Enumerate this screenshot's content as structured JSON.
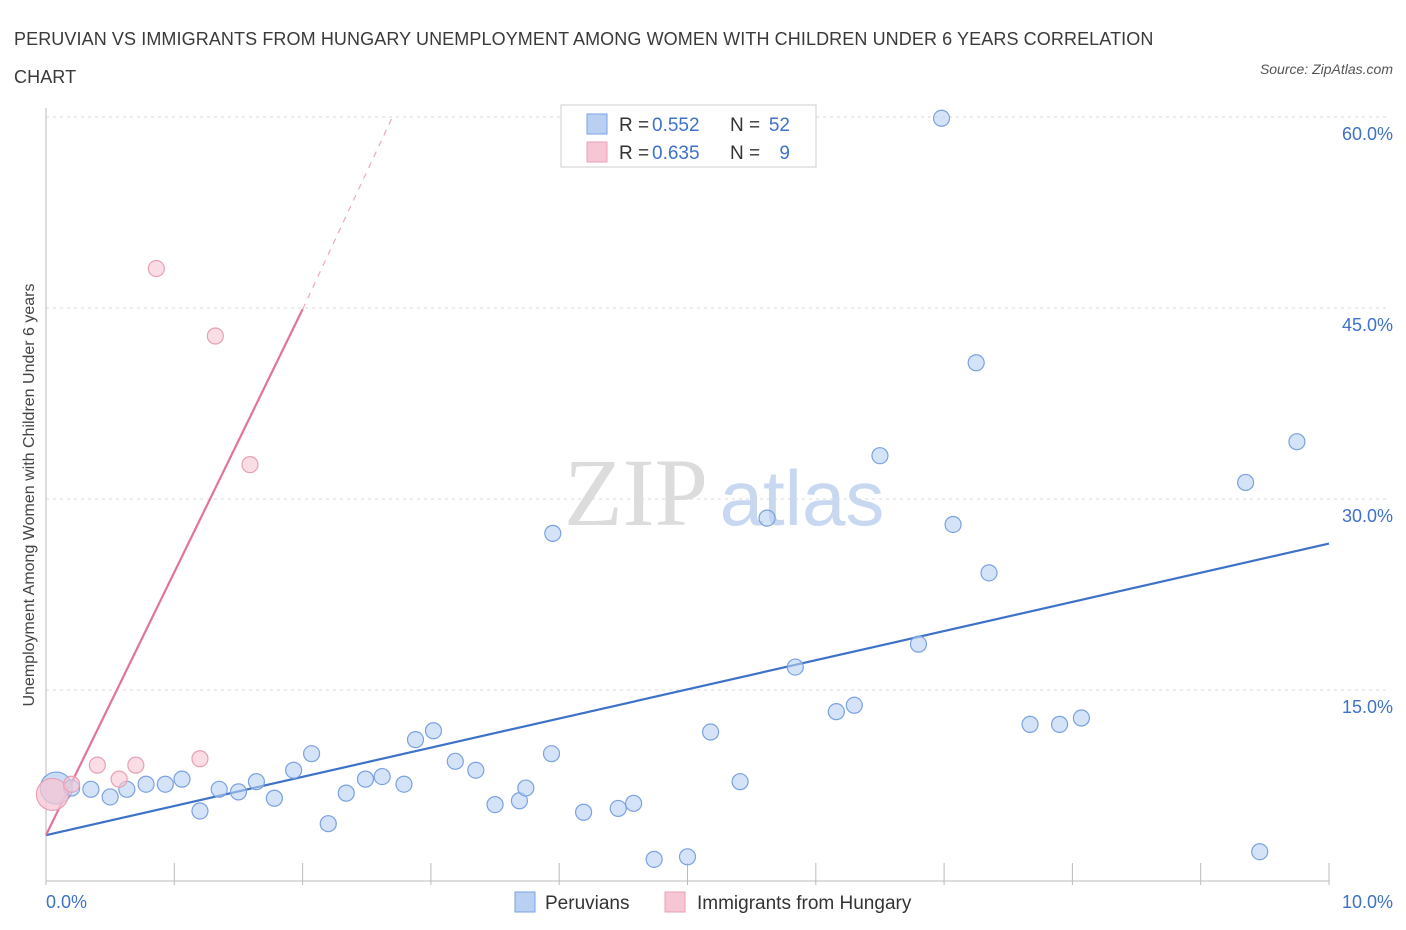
{
  "title": "PERUVIAN VS IMMIGRANTS FROM HUNGARY UNEMPLOYMENT AMONG WOMEN WITH CHILDREN UNDER 6 YEARS CORRELATION CHART",
  "source": "Source: ZipAtlas.com",
  "watermark": {
    "zip": "ZIP",
    "atlas": "atlas"
  },
  "colors": {
    "blue": "#3d72c8",
    "blue_fill": "#b9d0f3",
    "pink": "#e2739a",
    "pink_fill": "#f7c6d4",
    "grid": "#d9d9d9"
  },
  "legend": {
    "series": [
      {
        "r_label": "R =",
        "r_value": "0.552",
        "n_label": "N =",
        "n_value": "52"
      },
      {
        "r_label": "R =",
        "r_value": "0.635",
        "n_label": "N =",
        "n_value": "9"
      }
    ]
  },
  "bottom_legend": [
    "Peruvians",
    "Immigrants from Hungary"
  ],
  "chart_data": {
    "type": "scatter",
    "title": "PERUVIAN VS IMMIGRANTS FROM HUNGARY UNEMPLOYMENT AMONG WOMEN WITH CHILDREN UNDER 6 YEARS CORRELATION CHART",
    "xlabel": "",
    "ylabel": "Unemployment Among Women with Children Under 6 years",
    "xlim": [
      0,
      10
    ],
    "ylim": [
      0,
      60
    ],
    "x_tick_labels": [
      "0.0%",
      "10.0%"
    ],
    "y_ticks": [
      15,
      30,
      45,
      60
    ],
    "y_tick_labels": [
      "15.0%",
      "30.0%",
      "45.0%",
      "60.0%"
    ],
    "grid": true,
    "series": [
      {
        "name": "Peruvians",
        "r": 0.552,
        "n": 52,
        "trendline": {
          "x": [
            0,
            10
          ],
          "y": [
            3.6,
            26.5
          ]
        },
        "points": [
          {
            "x": 0.08,
            "y": 7.3,
            "big": true
          },
          {
            "x": 0.2,
            "y": 7.3
          },
          {
            "x": 0.35,
            "y": 7.2
          },
          {
            "x": 0.5,
            "y": 6.6
          },
          {
            "x": 0.63,
            "y": 7.2
          },
          {
            "x": 0.78,
            "y": 7.6
          },
          {
            "x": 0.93,
            "y": 7.6
          },
          {
            "x": 1.06,
            "y": 8.0
          },
          {
            "x": 1.2,
            "y": 5.5
          },
          {
            "x": 1.35,
            "y": 7.2
          },
          {
            "x": 1.5,
            "y": 7.0
          },
          {
            "x": 1.64,
            "y": 7.8
          },
          {
            "x": 1.78,
            "y": 6.5
          },
          {
            "x": 1.93,
            "y": 8.7
          },
          {
            "x": 2.07,
            "y": 10.0
          },
          {
            "x": 2.2,
            "y": 4.5
          },
          {
            "x": 2.34,
            "y": 6.9
          },
          {
            "x": 2.49,
            "y": 8.0
          },
          {
            "x": 2.62,
            "y": 8.2
          },
          {
            "x": 2.79,
            "y": 7.6
          },
          {
            "x": 2.88,
            "y": 11.1
          },
          {
            "x": 3.02,
            "y": 11.8
          },
          {
            "x": 3.19,
            "y": 9.4
          },
          {
            "x": 3.35,
            "y": 8.7
          },
          {
            "x": 3.5,
            "y": 6.0
          },
          {
            "x": 3.69,
            "y": 6.3
          },
          {
            "x": 3.74,
            "y": 7.3
          },
          {
            "x": 3.94,
            "y": 10.0
          },
          {
            "x": 3.95,
            "y": 27.3
          },
          {
            "x": 4.19,
            "y": 5.4
          },
          {
            "x": 4.46,
            "y": 5.7
          },
          {
            "x": 4.58,
            "y": 6.1
          },
          {
            "x": 4.74,
            "y": 1.7
          },
          {
            "x": 5.0,
            "y": 1.9
          },
          {
            "x": 5.18,
            "y": 11.7
          },
          {
            "x": 5.41,
            "y": 7.8
          },
          {
            "x": 5.62,
            "y": 28.5
          },
          {
            "x": 5.84,
            "y": 16.8
          },
          {
            "x": 6.16,
            "y": 13.3
          },
          {
            "x": 6.3,
            "y": 13.8
          },
          {
            "x": 6.5,
            "y": 33.4
          },
          {
            "x": 6.8,
            "y": 18.6
          },
          {
            "x": 6.98,
            "y": 59.9
          },
          {
            "x": 7.07,
            "y": 28.0
          },
          {
            "x": 7.25,
            "y": 40.7
          },
          {
            "x": 7.35,
            "y": 24.2
          },
          {
            "x": 7.67,
            "y": 12.3
          },
          {
            "x": 7.9,
            "y": 12.3
          },
          {
            "x": 8.07,
            "y": 12.8
          },
          {
            "x": 9.35,
            "y": 31.3
          },
          {
            "x": 9.46,
            "y": 2.3
          },
          {
            "x": 9.75,
            "y": 34.5
          }
        ]
      },
      {
        "name": "Immigrants from Hungary",
        "r": 0.635,
        "n": 9,
        "trendline": {
          "x": [
            0,
            2.0
          ],
          "y": [
            3.6,
            44.9
          ],
          "dashed_extension": {
            "x": [
              2.0,
              2.7
            ],
            "y": [
              44.9,
              60
            ]
          }
        },
        "points": [
          {
            "x": 0.05,
            "y": 6.8,
            "big": true
          },
          {
            "x": 0.2,
            "y": 7.6
          },
          {
            "x": 0.4,
            "y": 9.1
          },
          {
            "x": 0.57,
            "y": 8.0
          },
          {
            "x": 0.7,
            "y": 9.1
          },
          {
            "x": 0.86,
            "y": 48.1
          },
          {
            "x": 1.2,
            "y": 9.6
          },
          {
            "x": 1.32,
            "y": 42.8
          },
          {
            "x": 1.59,
            "y": 32.7
          }
        ]
      }
    ]
  }
}
